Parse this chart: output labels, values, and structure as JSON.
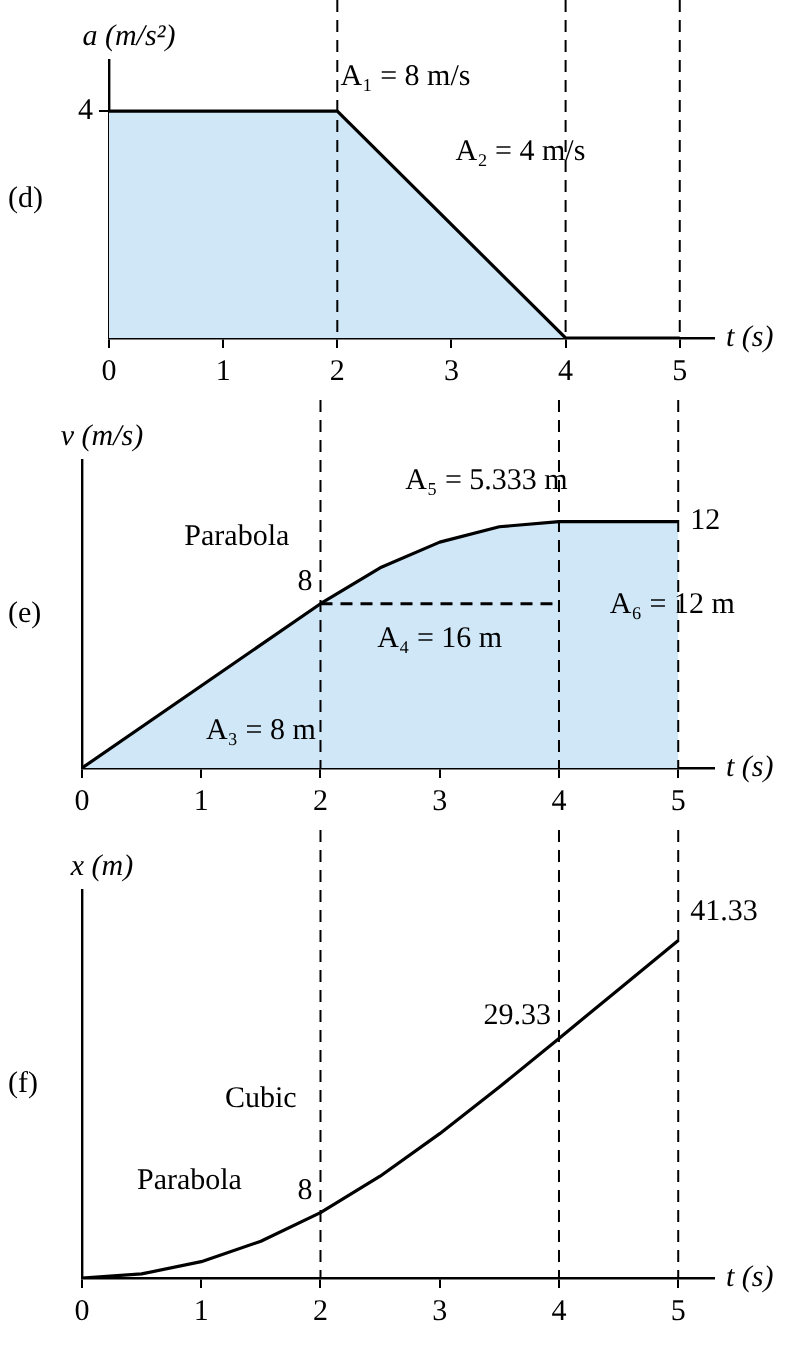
{
  "chart_data": [
    {
      "type": "area",
      "title": "(d)",
      "xlabel": "t (s)",
      "ylabel": "a (m/s²)",
      "xlim": [
        0,
        5.3
      ],
      "xticks": [
        0,
        1,
        2,
        3,
        4,
        5
      ],
      "ylim": [
        0,
        4.9
      ],
      "yticks": [
        4
      ],
      "grid": false,
      "legend": false,
      "series": [
        {
          "type": "area",
          "color": "#cfe7f7",
          "x": [
            0,
            2,
            4,
            5
          ],
          "values": [
            4,
            4,
            0,
            0
          ]
        }
      ],
      "ref_lines": [
        {
          "axis": "x",
          "value": 2,
          "line_style": "dashed"
        },
        {
          "axis": "x",
          "value": 4,
          "line_style": "dashed"
        },
        {
          "axis": "x",
          "value": 5,
          "line_style": "dashed"
        }
      ],
      "annotations": [
        "A₁ = 8 m/s",
        "A₂ = 4 m/s"
      ]
    },
    {
      "type": "area",
      "title": "(e)",
      "xlabel": "t (s)",
      "ylabel": "v (m/s)",
      "xlim": [
        0,
        5.3
      ],
      "xticks": [
        0,
        1,
        2,
        3,
        4,
        5
      ],
      "ylim": [
        0,
        15
      ],
      "tick_labels": "x",
      "grid": false,
      "legend": false,
      "series": [
        {
          "type": "area",
          "color": "#cfe7f7",
          "x": [
            0,
            2,
            2.5,
            3,
            3.5,
            4,
            5
          ],
          "values": [
            0,
            8,
            9.75,
            11,
            11.75,
            12,
            12
          ],
          "value_labels": [
            null,
            "8",
            null,
            null,
            null,
            null,
            "12"
          ]
        },
        {
          "type": "line",
          "color": "#000000",
          "line_style": "dashed",
          "x": [
            2,
            4
          ],
          "values": [
            8,
            8
          ]
        }
      ],
      "ref_lines": [
        {
          "axis": "x",
          "value": 2,
          "line_style": "dashed"
        },
        {
          "axis": "x",
          "value": 4,
          "line_style": "dashed"
        },
        {
          "axis": "x",
          "value": 5,
          "line_style": "dashed"
        }
      ],
      "annotations": [
        "Parabola",
        "A₅ = 5.333 m",
        "A₃ = 8 m",
        "A₄ = 16 m",
        "A₆ = 12 m"
      ]
    },
    {
      "type": "line",
      "title": "(f)",
      "xlabel": "t (s)",
      "ylabel": "x (m)",
      "xlim": [
        0,
        5.3
      ],
      "xticks": [
        0,
        1,
        2,
        3,
        4,
        5
      ],
      "ylim": [
        0,
        47.5
      ],
      "tick_labels": "x",
      "grid": false,
      "legend": false,
      "series": [
        {
          "type": "line",
          "color": "#000000",
          "x": [
            0,
            0.5,
            1,
            1.5,
            2,
            2.5,
            3,
            3.5,
            4,
            4.5,
            5
          ],
          "values": [
            0,
            0.5,
            2,
            4.5,
            8,
            12.46,
            17.67,
            23.38,
            29.33,
            35.33,
            41.33
          ],
          "value_labels": [
            null,
            null,
            null,
            null,
            "8",
            null,
            null,
            null,
            "29.33",
            null,
            "41.33"
          ]
        }
      ],
      "ref_lines": [
        {
          "axis": "x",
          "value": 2,
          "line_style": "dashed"
        },
        {
          "axis": "x",
          "value": 4,
          "line_style": "dashed"
        },
        {
          "axis": "x",
          "value": 5,
          "line_style": "dashed"
        }
      ],
      "annotations": [
        "Cubic",
        "Parabola"
      ]
    }
  ]
}
